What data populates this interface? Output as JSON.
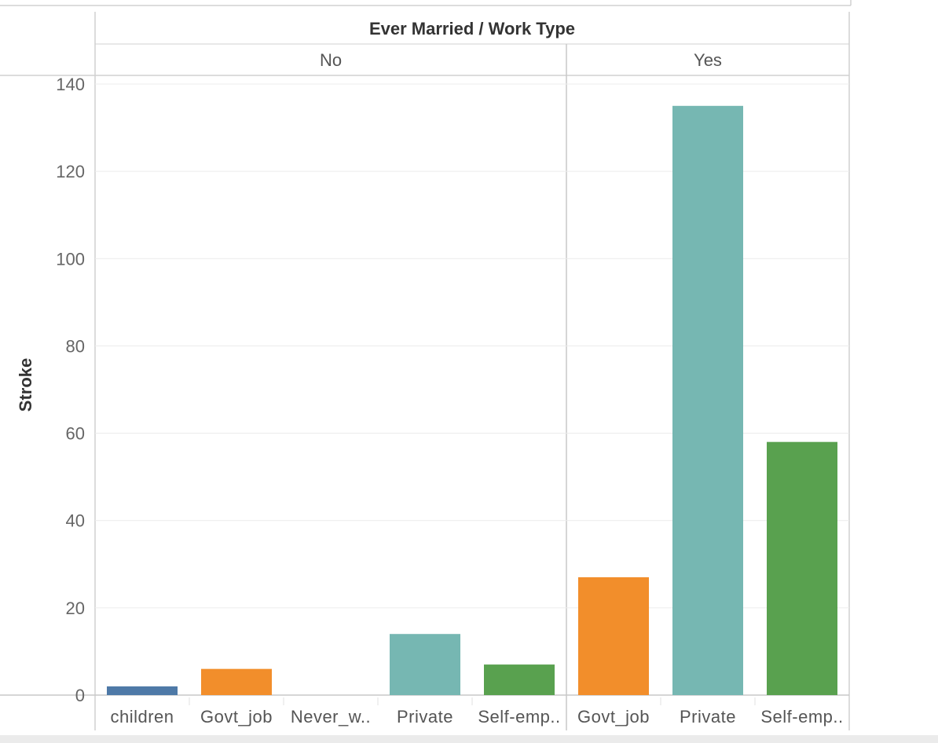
{
  "chart_data": {
    "type": "bar",
    "title": "Ever Married / Work Type",
    "ylabel": "Stroke",
    "ylim": [
      0,
      140
    ],
    "yticks": [
      0,
      20,
      40,
      60,
      80,
      100,
      120,
      140
    ],
    "grid": true,
    "groups": [
      {
        "name": "No",
        "bars": [
          {
            "category": "children",
            "value": 2,
            "color": "#4e79a7"
          },
          {
            "category": "Govt_job",
            "value": 6,
            "color": "#f28e2b"
          },
          {
            "category": "Never_w..",
            "value": 0,
            "color": "#e15759"
          },
          {
            "category": "Private",
            "value": 14,
            "color": "#76b7b2"
          },
          {
            "category": "Self-emp..",
            "value": 7,
            "color": "#59a14f"
          }
        ]
      },
      {
        "name": "Yes",
        "bars": [
          {
            "category": "Govt_job",
            "value": 27,
            "color": "#f28e2b"
          },
          {
            "category": "Private",
            "value": 135,
            "color": "#76b7b2"
          },
          {
            "category": "Self-emp..",
            "value": 58,
            "color": "#59a14f"
          }
        ]
      }
    ]
  }
}
